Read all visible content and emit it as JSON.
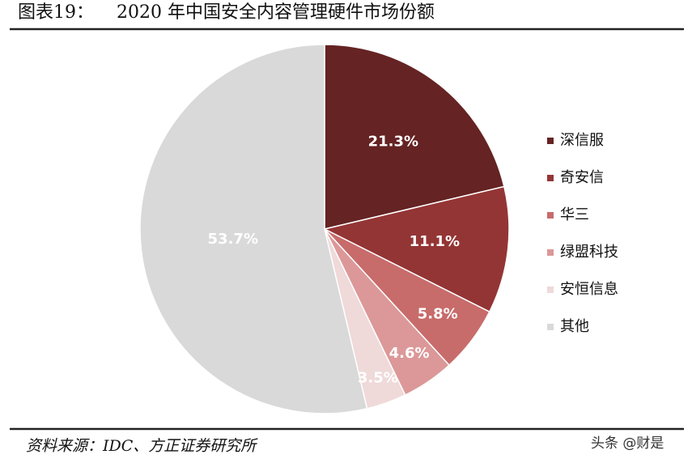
{
  "chart_data": {
    "type": "pie",
    "title": "图表19：    2020 年中国安全内容管理硬件市场份额",
    "categories": [
      "深信服",
      "奇安信",
      "华三",
      "绿盟科技",
      "安恒信息",
      "其他"
    ],
    "values": [
      21.3,
      11.1,
      5.8,
      4.6,
      3.5,
      53.7
    ],
    "value_labels": [
      "21.3%",
      "11.1%",
      "5.8%",
      "4.6%",
      "3.5%",
      "53.7%"
    ],
    "colors": [
      "#652323",
      "#943535",
      "#c86b6b",
      "#dc9898",
      "#efd9d9",
      "#d9d9d9"
    ],
    "legend": "right",
    "source": "资料来源：IDC、方正证券研究所",
    "watermark": "头条 @财是"
  }
}
